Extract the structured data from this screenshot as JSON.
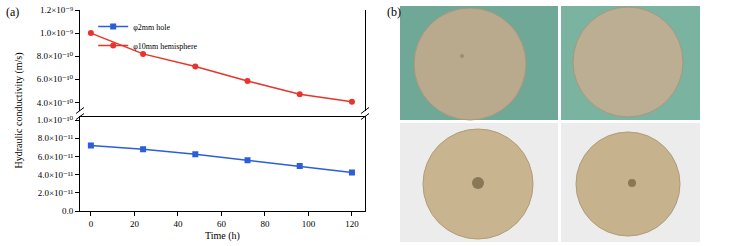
{
  "chart_data": {
    "type": "line",
    "annotations": [
      "(a)",
      "(b)"
    ],
    "x_label": "Time (h)",
    "y_label": "Hydraulic conductivity (m/s)",
    "x": [
      0,
      24,
      48,
      72,
      96,
      120
    ],
    "series": [
      {
        "name": "φ2mm hole",
        "color": "#2b5fd9",
        "marker": "square",
        "line_style": "solid",
        "values": [
          7.2e-11,
          6.8e-11,
          6.25e-11,
          5.6e-11,
          4.95e-11,
          4.25e-11
        ]
      },
      {
        "name": "φ10mm hemisphere",
        "color": "#e8342c",
        "marker": "circle",
        "line_style": "solid",
        "axis": "y2",
        "values": [
          1e-09,
          8.2e-10,
          7.1e-10,
          5.85e-10,
          4.7e-10,
          4.05e-10
        ]
      }
    ],
    "xlim": [
      -5,
      126
    ],
    "xticks": [
      0,
      20,
      40,
      60,
      80,
      100,
      120
    ],
    "ylim": [
      0,
      1.04e-10
    ],
    "yticks": [
      {
        "value": 0,
        "label": "0.0"
      },
      {
        "value": 2e-11,
        "label": "2.0×10⁻¹¹"
      },
      {
        "value": 4e-11,
        "label": "4.0×10⁻¹¹"
      },
      {
        "value": 6e-11,
        "label": "6.0×10⁻¹¹"
      },
      {
        "value": 8e-11,
        "label": "8.0×10⁻¹¹"
      },
      {
        "value": 1e-10,
        "label": "1.0×10⁻¹⁰"
      }
    ],
    "y2lim": [
      3.3e-10,
      1.2e-09
    ],
    "y2ticks": [
      {
        "value": 4e-10,
        "label": "4.0×10⁻¹⁰"
      },
      {
        "value": 6e-10,
        "label": "6.0×10⁻¹⁰"
      },
      {
        "value": 8e-10,
        "label": "8.0×10⁻¹⁰"
      },
      {
        "value": 1e-09,
        "label": "1.0×10⁻⁹"
      },
      {
        "value": 1.2e-09,
        "label": "1.2×10⁻⁹"
      }
    ],
    "legend": "upper left",
    "grid": false
  }
}
